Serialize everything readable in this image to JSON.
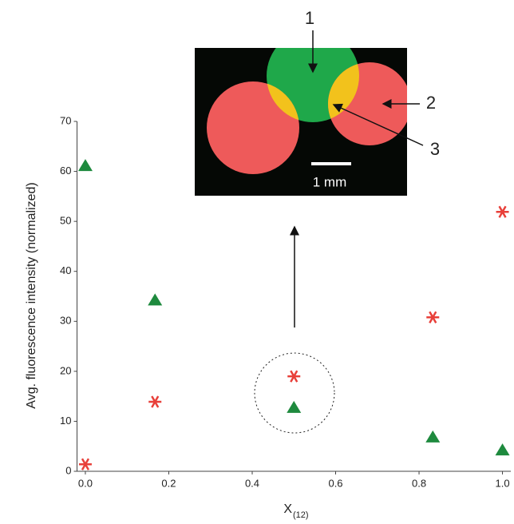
{
  "chart_data": {
    "type": "scatter",
    "ylabel": "Avg. fluorescence intensity (normalized)",
    "xlabel": "X",
    "xlabel_subscript": "(12)",
    "xlim": [
      -0.02,
      1.02
    ],
    "ylim": [
      0,
      70
    ],
    "xticks": [
      {
        "value": 0,
        "label": "0.0"
      },
      0.2,
      0.4,
      0.6,
      0.8,
      {
        "value": 1,
        "label": "1.0"
      }
    ],
    "yticks": [
      0,
      10,
      20,
      30,
      40,
      50,
      60,
      70
    ],
    "grid": false,
    "series": [
      {
        "color": "#1e8a3e",
        "marker": "triangle",
        "x": [
          0,
          0.167,
          0.5,
          0.833,
          1
        ],
        "values": [
          61.2,
          34.3,
          12.8,
          6.9,
          4.3
        ]
      },
      {
        "color": "#e8403a",
        "marker": "asterisk",
        "x": [
          0,
          0.167,
          0.5,
          0.833,
          1
        ],
        "values": [
          1.4,
          13.9,
          19,
          30.8,
          51.9
        ]
      }
    ],
    "annotations": [
      "1",
      "2",
      "3",
      "1 mm"
    ]
  }
}
